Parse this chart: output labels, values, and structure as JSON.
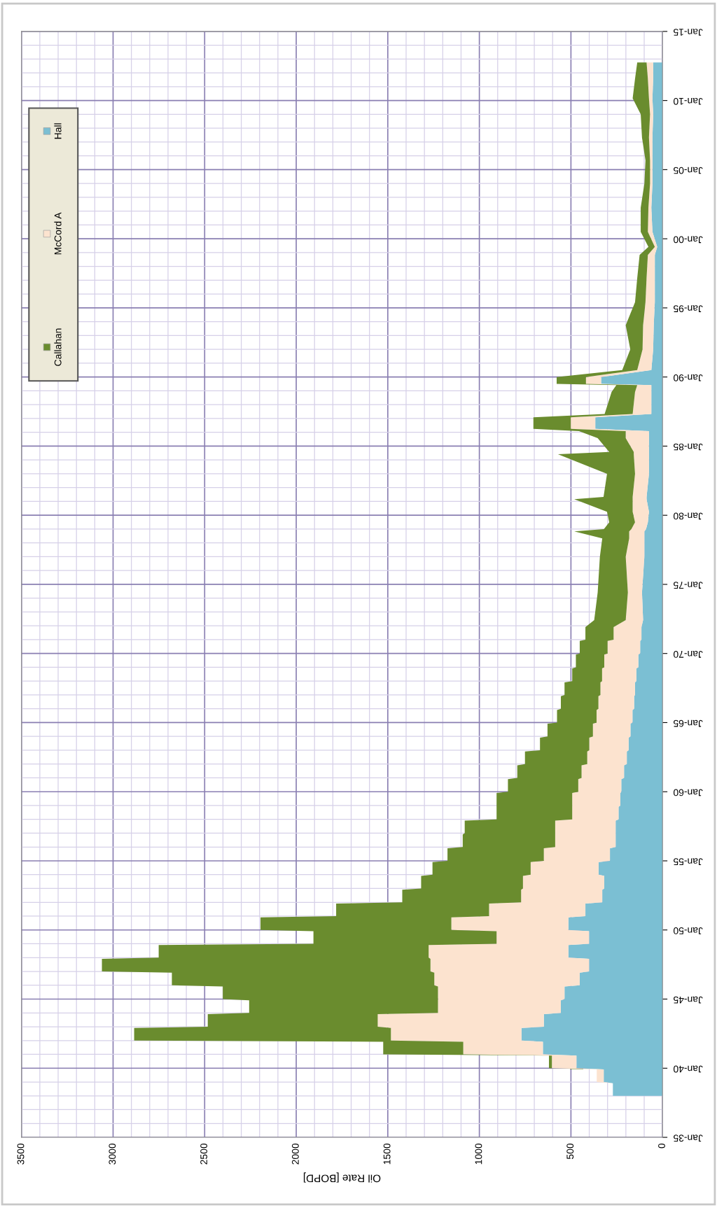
{
  "chart_data": {
    "type": "area",
    "stacked": true,
    "orientation": "horizontal",
    "xlabel": "Oil Rate [BOPD]",
    "x": [
      "1938-01",
      "1938-12",
      "1939-01",
      "1939-12",
      "1940-01",
      "1940-12",
      "1941-01",
      "1941-12",
      "1942-01",
      "1942-12",
      "1943-01",
      "1943-12",
      "1944-01",
      "1944-12",
      "1945-01",
      "1945-12",
      "1946-01",
      "1946-12",
      "1947-01",
      "1947-12",
      "1948-01",
      "1948-12",
      "1949-01",
      "1949-12",
      "1950-01",
      "1950-12",
      "1951-01",
      "1951-12",
      "1952-01",
      "1952-12",
      "1953-01",
      "1953-12",
      "1954-01",
      "1954-12",
      "1955-01",
      "1955-12",
      "1956-01",
      "1956-12",
      "1957-01",
      "1957-12",
      "1958-01",
      "1958-12",
      "1959-01",
      "1959-12",
      "1960-01",
      "1960-12",
      "1961-01",
      "1961-12",
      "1962-01",
      "1962-12",
      "1963-01",
      "1963-12",
      "1964-01",
      "1964-12",
      "1965-01",
      "1965-12",
      "1966-01",
      "1966-12",
      "1967-01",
      "1967-12",
      "1968-01",
      "1968-12",
      "1969-01",
      "1969-12",
      "1970-01",
      "1970-12",
      "1971-01",
      "1971-12",
      "1972-06",
      "1974-06",
      "1977-01",
      "1978-05",
      "1978-11",
      "1979-01",
      "1979-07",
      "1980-04",
      "1981-03",
      "1981-05",
      "1983-01",
      "1984-06",
      "1984-08",
      "1985-08",
      "1986-02",
      "1986-04",
      "1987-02",
      "1987-05",
      "1988-12",
      "1989-06",
      "1989-07",
      "1990-01",
      "1990-07",
      "1992-01",
      "1993-10",
      "1995-06",
      "1997-03",
      "1998-11",
      "1999-06",
      "2000-07",
      "2002-04",
      "2004-01",
      "2005-09",
      "2007-05",
      "2009-01",
      "2010-03",
      "2011-08",
      "2012-10"
    ],
    "series": [
      {
        "name": "Hall",
        "color": "#7bbfd3",
        "values": [
          271,
          271,
          321,
          321,
          470,
          470,
          653,
          653,
          770,
          770,
          648,
          648,
          555,
          555,
          535,
          535,
          452,
          452,
          401,
          401,
          514,
          514,
          401,
          401,
          514,
          514,
          421,
          421,
          329,
          329,
          318,
          318,
          349,
          349,
          287,
          287,
          256,
          256,
          256,
          256,
          240,
          240,
          230,
          230,
          225,
          225,
          210,
          210,
          195,
          195,
          185,
          185,
          175,
          175,
          164,
          164,
          155,
          155,
          150,
          150,
          143,
          143,
          132,
          132,
          122,
          122,
          115,
          115,
          106,
          112,
          99,
          99,
          99,
          90,
          80,
          74,
          87,
          87,
          74,
          74,
          74,
          74,
          74,
          367,
          367,
          61,
          61,
          61,
          335,
          335,
          61,
          51,
          48,
          42,
          42,
          42,
          29,
          55,
          61,
          55,
          55,
          55,
          51,
          55,
          51,
          51
        ]
      },
      {
        "name": "McCord A",
        "color": "#fce3cf",
        "values": [
          0,
          0,
          38,
          38,
          134,
          134,
          435,
          435,
          713,
          713,
          907,
          907,
          671,
          671,
          691,
          691,
          794,
          794,
          866,
          866,
          763,
          763,
          505,
          505,
          639,
          639,
          526,
          526,
          443,
          443,
          444,
          444,
          371,
          371,
          361,
          361,
          330,
          330,
          330,
          330,
          253,
          253,
          263,
          263,
          235,
          235,
          232,
          232,
          216,
          216,
          215,
          215,
          205,
          205,
          196,
          196,
          195,
          195,
          189,
          189,
          187,
          187,
          186,
          186,
          178,
          178,
          152,
          152,
          95,
          77,
          102,
          83,
          83,
          80,
          70,
          89,
          76,
          76,
          76,
          83,
          83,
          127,
          127,
          134,
          134,
          102,
          89,
          77,
          83,
          83,
          77,
          58,
          58,
          51,
          45,
          38,
          13,
          25,
          16,
          13,
          13,
          19,
          17,
          19,
          29,
          36
        ]
      },
      {
        "name": "Callahan",
        "color": "#6a8c2e",
        "values": [
          0,
          0,
          0,
          0,
          16,
          16,
          437,
          437,
          1402,
          1402,
          928,
          928,
          1031,
          1031,
          1175,
          1175,
          1433,
          1433,
          1794,
          1794,
          1474,
          1474,
          1000,
          1000,
          1042,
          1042,
          835,
          835,
          649,
          649,
          556,
          556,
          536,
          536,
          526,
          526,
          505,
          505,
          494,
          494,
          413,
          413,
          413,
          413,
          384,
          384,
          351,
          351,
          340,
          340,
          269,
          269,
          248,
          248,
          216,
          216,
          205,
          205,
          196,
          196,
          163,
          163,
          155,
          155,
          152,
          152,
          154,
          154,
          172,
          165,
          141,
          147,
          300,
          150,
          141,
          140,
          319,
          159,
          153,
          414,
          134,
          153,
          255,
          204,
          204,
          153,
          128,
          114,
          160,
          160,
          82,
          67,
          95,
          57,
          51,
          45,
          35,
          39,
          42,
          31,
          25,
          38,
          51,
          89,
          70,
          51
        ]
      }
    ],
    "ylim": [
      "1935-01",
      "2015-01"
    ],
    "yticks": [
      {
        "value": "1935-01",
        "label": "Jan-35"
      },
      {
        "value": "1940-01",
        "label": "Jan-40"
      },
      {
        "value": "1945-01",
        "label": "Jan-45"
      },
      {
        "value": "1950-01",
        "label": "Jan-50"
      },
      {
        "value": "1955-01",
        "label": "Jan-55"
      },
      {
        "value": "1960-01",
        "label": "Jan-60"
      },
      {
        "value": "1965-01",
        "label": "Jan-65"
      },
      {
        "value": "1970-01",
        "label": "Jan-70"
      },
      {
        "value": "1975-01",
        "label": "Jan-75"
      },
      {
        "value": "1980-01",
        "label": "Jan-80"
      },
      {
        "value": "1985-01",
        "label": "Jan-85"
      },
      {
        "value": "1990-01",
        "label": "Jan-90"
      },
      {
        "value": "1995-01",
        "label": "Jan-95"
      },
      {
        "value": "2000-01",
        "label": "Jan-00"
      },
      {
        "value": "2005-01",
        "label": "Jan-05"
      },
      {
        "value": "2010-01",
        "label": "Jan-10"
      },
      {
        "value": "2015-01",
        "label": "Jan-15"
      }
    ],
    "xlim": [
      3500,
      0
    ],
    "xticks": [
      3500,
      3000,
      2500,
      2000,
      1500,
      1000,
      500,
      0
    ],
    "grid": true,
    "legend": "top left"
  }
}
